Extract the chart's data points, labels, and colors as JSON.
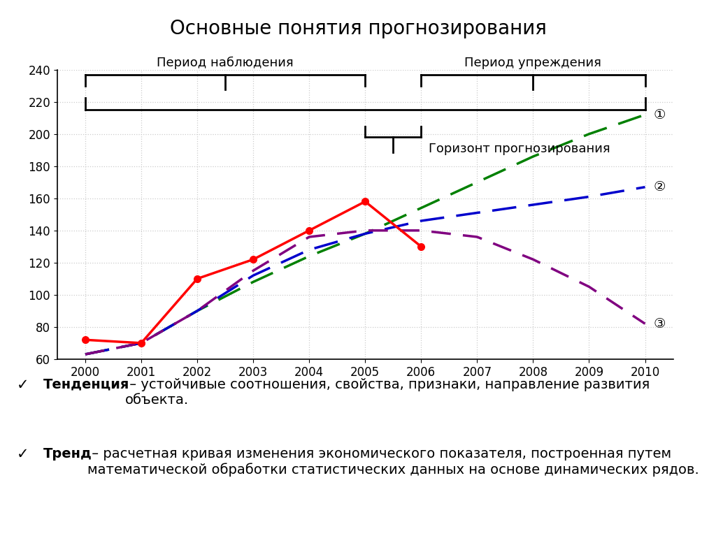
{
  "title": "Основные понятия прогнозирования",
  "years": [
    2000,
    2001,
    2002,
    2003,
    2004,
    2005,
    2006,
    2007,
    2008,
    2009,
    2010
  ],
  "red_line": {
    "x": [
      2000,
      2001,
      2002,
      2003,
      2004,
      2005,
      2006
    ],
    "y": [
      72,
      70,
      110,
      122,
      140,
      158,
      130
    ],
    "color": "#FF0000",
    "lw": 2.5
  },
  "green_dashed": {
    "x": [
      2000,
      2001,
      2002,
      2003,
      2004,
      2005,
      2006,
      2007,
      2008,
      2009,
      2010
    ],
    "y": [
      63,
      70,
      90,
      108,
      124,
      138,
      154,
      170,
      186,
      200,
      212
    ],
    "color": "#008000",
    "lw": 2.5
  },
  "blue_dashed": {
    "x": [
      2000,
      2001,
      2002,
      2003,
      2004,
      2005,
      2006,
      2007,
      2008,
      2009,
      2010
    ],
    "y": [
      63,
      70,
      90,
      112,
      128,
      138,
      146,
      151,
      156,
      161,
      167
    ],
    "color": "#0000CC",
    "lw": 2.5
  },
  "purple_dashed": {
    "x": [
      2000,
      2001,
      2002,
      2003,
      2004,
      2005,
      2006,
      2007,
      2008,
      2009,
      2010
    ],
    "y": [
      63,
      70,
      90,
      115,
      136,
      140,
      140,
      136,
      122,
      105,
      82
    ],
    "color": "#800080",
    "lw": 2.5
  },
  "ylim": [
    60,
    240
  ],
  "yticks": [
    60,
    80,
    100,
    120,
    140,
    160,
    180,
    200,
    220,
    240
  ],
  "xlim": [
    1999.5,
    2010.5
  ],
  "period_nabludenia": "Период наблюдения",
  "period_upregdenia": "Период упреждения",
  "gorizont": "Горизонт прогнозирования",
  "text1_bold": "Тенденция",
  "text1_rest": " – устойчивые соотношения, свойства, признаки, направление развития объекта.",
  "text2_bold": "Тренд",
  "text2_rest": " – расчетная кривая изменения экономического показателя, построенная путем математической обработки статистических данных на основе динамических рядов.",
  "bg_color": "#FFFFFF",
  "grid_color": "#CCCCCC"
}
